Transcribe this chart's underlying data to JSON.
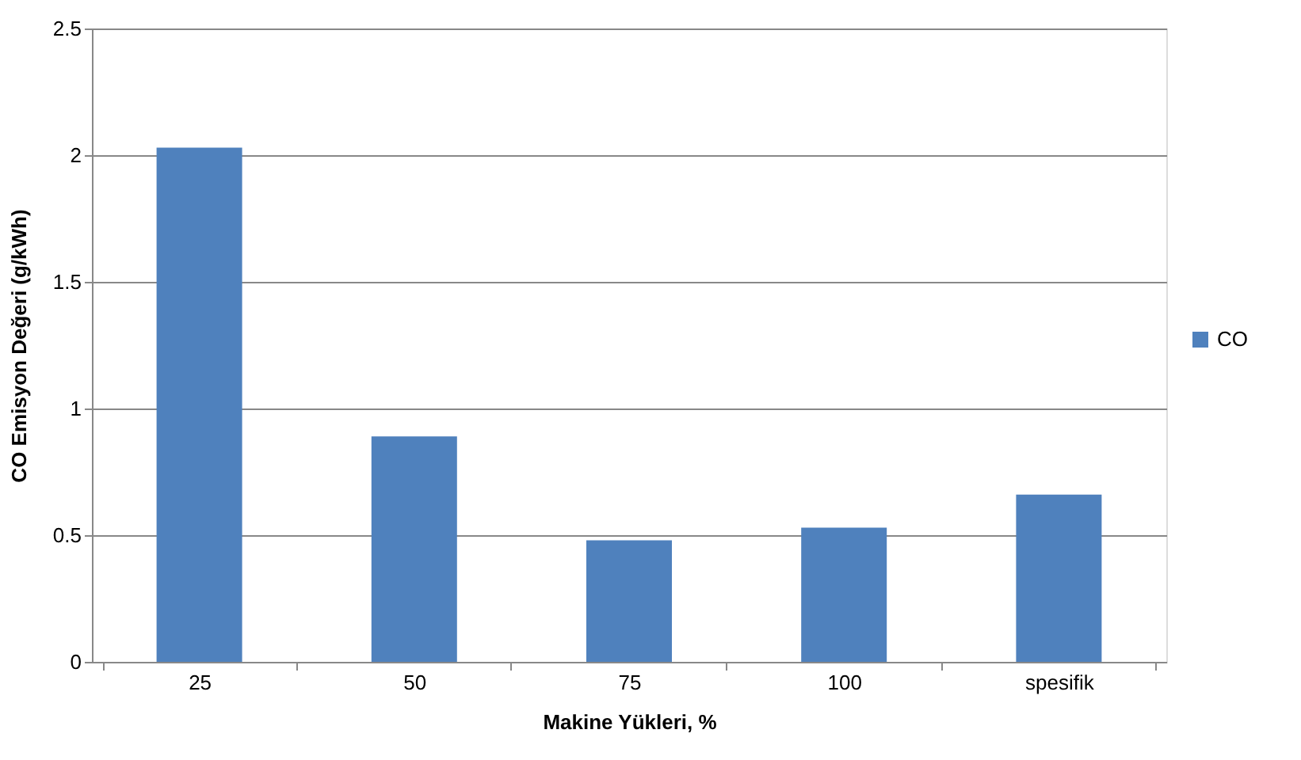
{
  "chart_data": {
    "type": "bar",
    "xlabel": "Makine Yükleri, %",
    "ylabel": "CO Emisyon Değeri (g/kWh)",
    "categories": [
      "25",
      "50",
      "75",
      "100",
      "spesifik"
    ],
    "series": [
      {
        "name": "CO",
        "color": "#4f81bd",
        "values": [
          2.03,
          0.89,
          0.48,
          0.53,
          0.66
        ]
      }
    ],
    "ylim": [
      0,
      2.5
    ],
    "yticks": [
      0,
      0.5,
      1,
      1.5,
      2,
      2.5
    ],
    "grid": "y",
    "legend": "right"
  }
}
